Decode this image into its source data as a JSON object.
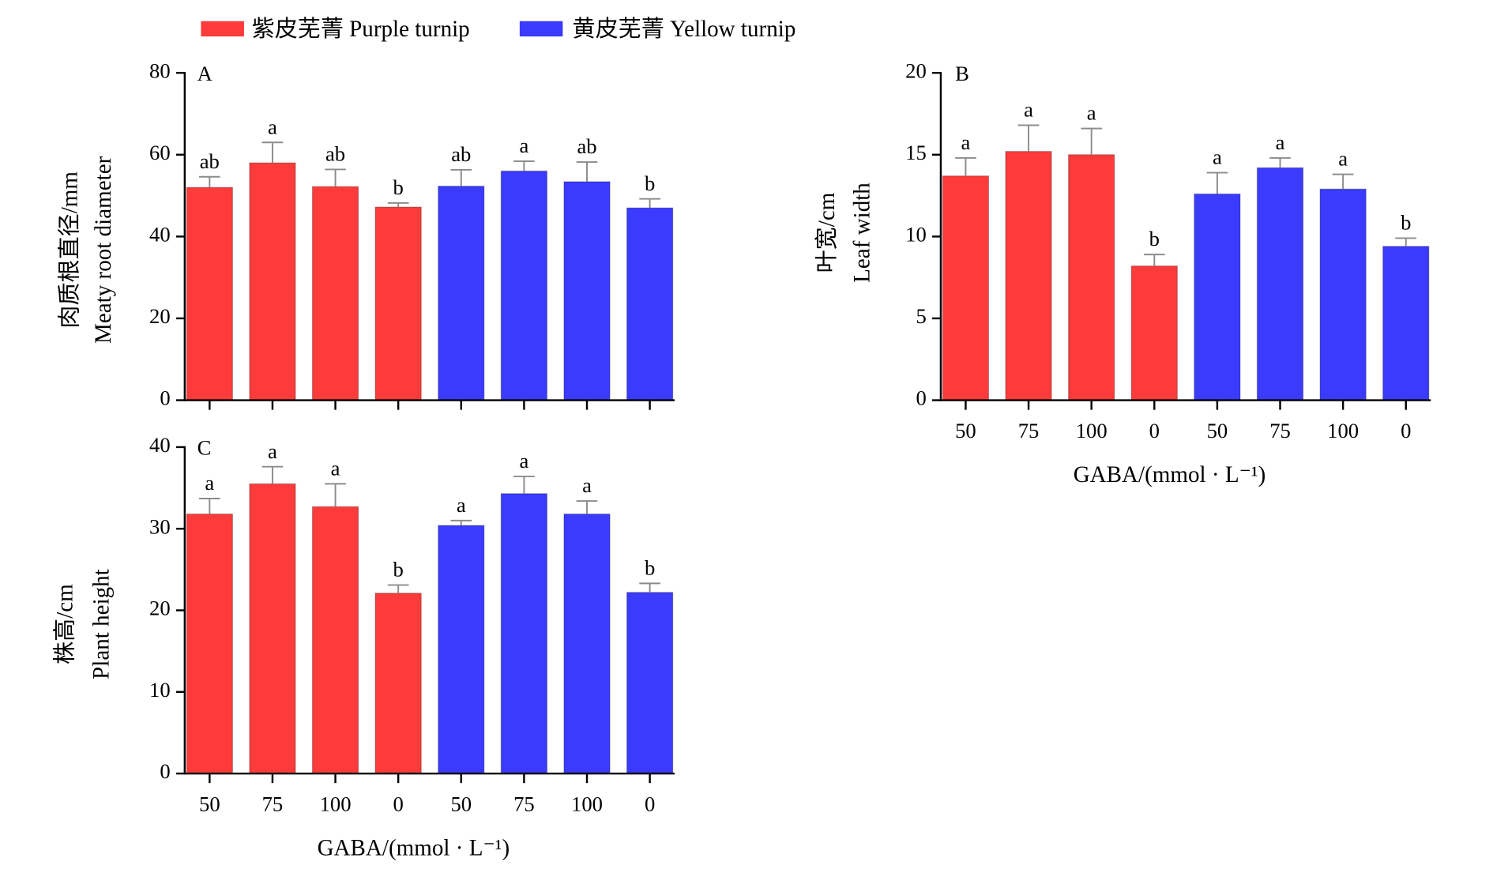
{
  "legend": {
    "items": [
      {
        "name": "紫皮芜菁 Purple turnip",
        "color": "#fd3b3b"
      },
      {
        "name": "黄皮芜菁 Yellow turnip",
        "color": "#3b3bfd"
      }
    ]
  },
  "chart_data": [
    {
      "panel": "A",
      "type": "bar",
      "ylabel": [
        "肉质根直径/mm",
        "Meaty root diameter"
      ],
      "ylim": [
        0,
        80
      ],
      "yticks": [
        0,
        20,
        40,
        60,
        80
      ],
      "grid": false,
      "bars": [
        {
          "series": 0,
          "value": 52.0,
          "error": 2.6,
          "letter": "ab"
        },
        {
          "series": 0,
          "value": 58.0,
          "error": 5.0,
          "letter": "a"
        },
        {
          "series": 0,
          "value": 52.2,
          "error": 4.2,
          "letter": "ab"
        },
        {
          "series": 0,
          "value": 47.2,
          "error": 1.0,
          "letter": "b"
        },
        {
          "series": 1,
          "value": 52.3,
          "error": 4.0,
          "letter": "ab"
        },
        {
          "series": 1,
          "value": 56.0,
          "error": 2.4,
          "letter": "a"
        },
        {
          "series": 1,
          "value": 53.4,
          "error": 4.8,
          "letter": "ab"
        },
        {
          "series": 1,
          "value": 47.0,
          "error": 2.2,
          "letter": "b"
        }
      ]
    },
    {
      "panel": "B",
      "type": "bar",
      "ylabel": [
        "叶宽/cm",
        "Leaf width"
      ],
      "xlabel": "GABA/(mmol · L⁻¹)",
      "categories": [
        "50",
        "75",
        "100",
        "0",
        "50",
        "75",
        "100",
        "0"
      ],
      "ylim": [
        0,
        20
      ],
      "yticks": [
        0,
        5,
        10,
        15,
        20
      ],
      "grid": false,
      "bars": [
        {
          "series": 0,
          "value": 13.7,
          "error": 1.1,
          "letter": "a"
        },
        {
          "series": 0,
          "value": 15.2,
          "error": 1.6,
          "letter": "a"
        },
        {
          "series": 0,
          "value": 15.0,
          "error": 1.6,
          "letter": "a"
        },
        {
          "series": 0,
          "value": 8.2,
          "error": 0.7,
          "letter": "b"
        },
        {
          "series": 1,
          "value": 12.6,
          "error": 1.3,
          "letter": "a"
        },
        {
          "series": 1,
          "value": 14.2,
          "error": 0.6,
          "letter": "a"
        },
        {
          "series": 1,
          "value": 12.9,
          "error": 0.9,
          "letter": "a"
        },
        {
          "series": 1,
          "value": 9.4,
          "error": 0.5,
          "letter": "b"
        }
      ]
    },
    {
      "panel": "C",
      "type": "bar",
      "ylabel": [
        "株高/cm",
        "Plant height"
      ],
      "xlabel": "GABA/(mmol · L⁻¹)",
      "categories": [
        "50",
        "75",
        "100",
        "0",
        "50",
        "75",
        "100",
        "0"
      ],
      "ylim": [
        0,
        40
      ],
      "yticks": [
        0,
        10,
        20,
        30,
        40
      ],
      "grid": false,
      "bars": [
        {
          "series": 0,
          "value": 31.8,
          "error": 1.9,
          "letter": "a"
        },
        {
          "series": 0,
          "value": 35.5,
          "error": 2.1,
          "letter": "a"
        },
        {
          "series": 0,
          "value": 32.7,
          "error": 2.8,
          "letter": "a"
        },
        {
          "series": 0,
          "value": 22.1,
          "error": 1.0,
          "letter": "b"
        },
        {
          "series": 1,
          "value": 30.4,
          "error": 0.6,
          "letter": "a"
        },
        {
          "series": 1,
          "value": 34.3,
          "error": 2.1,
          "letter": "a"
        },
        {
          "series": 1,
          "value": 31.8,
          "error": 1.6,
          "letter": "a"
        },
        {
          "series": 1,
          "value": 22.2,
          "error": 1.1,
          "letter": "b"
        }
      ]
    }
  ]
}
